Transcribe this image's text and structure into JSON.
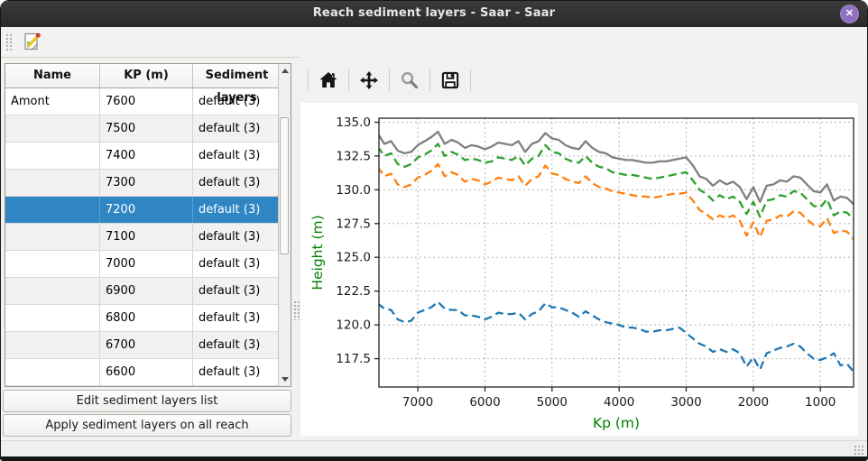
{
  "window": {
    "title": "Reach sediment layers - Saar - Saar",
    "close_glyph": "✕"
  },
  "toolbar": {
    "edit_icon": "edit-sediment-note-icon"
  },
  "table": {
    "columns": [
      "Name",
      "KP (m)",
      "Sediment layers"
    ],
    "rows": [
      {
        "name": "Amont",
        "kp": "7600",
        "layers": "default (3)"
      },
      {
        "name": "",
        "kp": "7500",
        "layers": "default (3)"
      },
      {
        "name": "",
        "kp": "7400",
        "layers": "default (3)"
      },
      {
        "name": "",
        "kp": "7300",
        "layers": "default (3)"
      },
      {
        "name": "",
        "kp": "7200",
        "layers": "default (3)"
      },
      {
        "name": "",
        "kp": "7100",
        "layers": "default (3)"
      },
      {
        "name": "",
        "kp": "7000",
        "layers": "default (3)"
      },
      {
        "name": "",
        "kp": "6900",
        "layers": "default (3)"
      },
      {
        "name": "",
        "kp": "6800",
        "layers": "default (3)"
      },
      {
        "name": "",
        "kp": "6700",
        "layers": "default (3)"
      },
      {
        "name": "",
        "kp": "6600",
        "layers": "default (3)"
      }
    ],
    "selected_kp": "7200"
  },
  "actions": {
    "edit_list": "Edit sediment layers list",
    "apply_all": "Apply sediment layers on all reach"
  },
  "plot_toolbar": {
    "icons": [
      "home-icon",
      "pan-icon",
      "zoom-icon",
      "save-icon"
    ]
  },
  "colors": {
    "selection": "#2f86c3",
    "titlebar": "#2e2e2e",
    "close_button": "#8f70c1",
    "axis_label": "#008000"
  },
  "chart_data": {
    "type": "line",
    "title": "",
    "xlabel": "Kp (m)",
    "ylabel": "Height (m)",
    "axis_label_color": "#008000",
    "x_inverted": true,
    "xlim": [
      7580,
      505
    ],
    "ylim": [
      115.4,
      135.3
    ],
    "xticks": [
      7000,
      6000,
      5000,
      4000,
      3000,
      2000,
      1000
    ],
    "yticks": [
      117.5,
      120.0,
      122.5,
      125.0,
      127.5,
      130.0,
      132.5,
      135.0
    ],
    "grid": true,
    "legend": false,
    "x": [
      7600,
      7500,
      7400,
      7300,
      7200,
      7100,
      7000,
      6900,
      6800,
      6700,
      6600,
      6500,
      6400,
      6300,
      6200,
      6100,
      6000,
      5900,
      5800,
      5700,
      5600,
      5500,
      5400,
      5300,
      5200,
      5100,
      5000,
      4900,
      4800,
      4700,
      4600,
      4500,
      4400,
      4300,
      4200,
      4100,
      4000,
      3900,
      3800,
      3700,
      3600,
      3500,
      3400,
      3300,
      3200,
      3100,
      3000,
      2900,
      2800,
      2700,
      2600,
      2500,
      2400,
      2300,
      2200,
      2100,
      2000,
      1900,
      1800,
      1700,
      1600,
      1500,
      1400,
      1300,
      1200,
      1100,
      1000,
      900,
      800,
      700,
      600,
      500
    ],
    "series": [
      {
        "name": "gray solid line",
        "color": "#7f7f7f",
        "dash": "solid",
        "values": [
          134.2,
          133.4,
          133.6,
          132.9,
          132.7,
          132.8,
          133.3,
          133.6,
          133.9,
          134.3,
          133.4,
          133.7,
          133.5,
          133.1,
          133.3,
          133.2,
          133.0,
          133.2,
          133.5,
          133.4,
          133.3,
          133.6,
          132.8,
          133.4,
          133.6,
          134.2,
          133.8,
          133.7,
          133.3,
          133.1,
          133.0,
          133.6,
          133.1,
          132.8,
          132.7,
          132.4,
          132.3,
          132.2,
          132.2,
          132.1,
          132.0,
          132.0,
          132.1,
          132.1,
          132.2,
          132.3,
          132.4,
          131.8,
          131.0,
          130.8,
          130.3,
          130.7,
          130.4,
          130.6,
          130.2,
          129.3,
          130.2,
          129.1,
          130.3,
          130.4,
          130.7,
          130.6,
          131.0,
          130.9,
          130.4,
          129.9,
          129.8,
          130.4,
          129.2,
          129.5,
          129.4,
          128.9
        ]
      },
      {
        "name": "green dashed line",
        "color": "#2ca02c",
        "dash": "dashed",
        "values": [
          133.2,
          132.5,
          132.7,
          131.9,
          131.7,
          131.9,
          132.4,
          132.6,
          132.9,
          133.4,
          132.5,
          132.8,
          132.6,
          132.2,
          132.3,
          132.2,
          132.0,
          132.1,
          132.4,
          132.3,
          132.2,
          132.5,
          131.8,
          132.3,
          132.5,
          133.3,
          132.8,
          132.7,
          132.3,
          132.1,
          132.0,
          132.5,
          132.0,
          131.7,
          131.6,
          131.3,
          131.2,
          131.1,
          131.1,
          131.0,
          130.9,
          130.8,
          130.9,
          131.0,
          131.1,
          131.2,
          131.3,
          130.7,
          130.0,
          129.7,
          129.2,
          129.6,
          129.3,
          129.5,
          129.1,
          128.2,
          129.1,
          128.0,
          129.2,
          129.3,
          129.6,
          129.5,
          129.9,
          129.8,
          129.3,
          128.8,
          128.7,
          129.3,
          128.1,
          128.4,
          128.3,
          127.8
        ]
      },
      {
        "name": "orange dashed line",
        "color": "#ff7f0e",
        "dash": "dashed",
        "values": [
          131.7,
          131.0,
          131.2,
          130.4,
          130.2,
          130.4,
          130.9,
          131.1,
          131.4,
          131.9,
          131.0,
          131.3,
          131.1,
          130.6,
          130.8,
          130.7,
          130.4,
          130.6,
          130.9,
          130.8,
          130.7,
          131.0,
          130.3,
          130.8,
          131.0,
          131.8,
          131.2,
          131.1,
          130.8,
          130.6,
          130.5,
          131.0,
          130.5,
          130.2,
          130.1,
          129.9,
          129.8,
          129.7,
          129.6,
          129.5,
          129.5,
          129.4,
          129.5,
          129.6,
          129.7,
          129.7,
          129.8,
          129.2,
          128.5,
          128.2,
          127.8,
          128.1,
          127.9,
          128.1,
          127.7,
          126.6,
          127.6,
          126.5,
          127.7,
          127.8,
          128.1,
          128.0,
          128.4,
          128.3,
          127.8,
          127.4,
          127.3,
          127.9,
          126.8,
          127.0,
          126.9,
          126.3
        ]
      },
      {
        "name": "blue dashed line",
        "color": "#1f77b4",
        "dash": "dashed",
        "values": [
          121.6,
          121.2,
          121.1,
          120.4,
          120.2,
          120.3,
          120.9,
          121.1,
          121.3,
          121.7,
          121.2,
          121.1,
          121.1,
          120.7,
          120.7,
          120.6,
          120.4,
          120.6,
          120.9,
          120.8,
          120.8,
          120.9,
          120.4,
          120.8,
          121.0,
          121.6,
          121.3,
          121.3,
          121.1,
          120.9,
          120.6,
          121.0,
          120.7,
          120.4,
          120.2,
          120.1,
          120.0,
          119.8,
          119.8,
          119.7,
          119.5,
          119.5,
          119.6,
          119.6,
          119.7,
          119.8,
          119.4,
          119.0,
          118.6,
          118.4,
          118.0,
          118.2,
          118.0,
          118.2,
          117.9,
          116.9,
          117.6,
          116.7,
          117.9,
          118.1,
          118.3,
          118.4,
          118.6,
          118.4,
          117.9,
          117.5,
          117.4,
          117.6,
          117.9,
          117.0,
          117.1,
          116.5
        ]
      }
    ]
  }
}
